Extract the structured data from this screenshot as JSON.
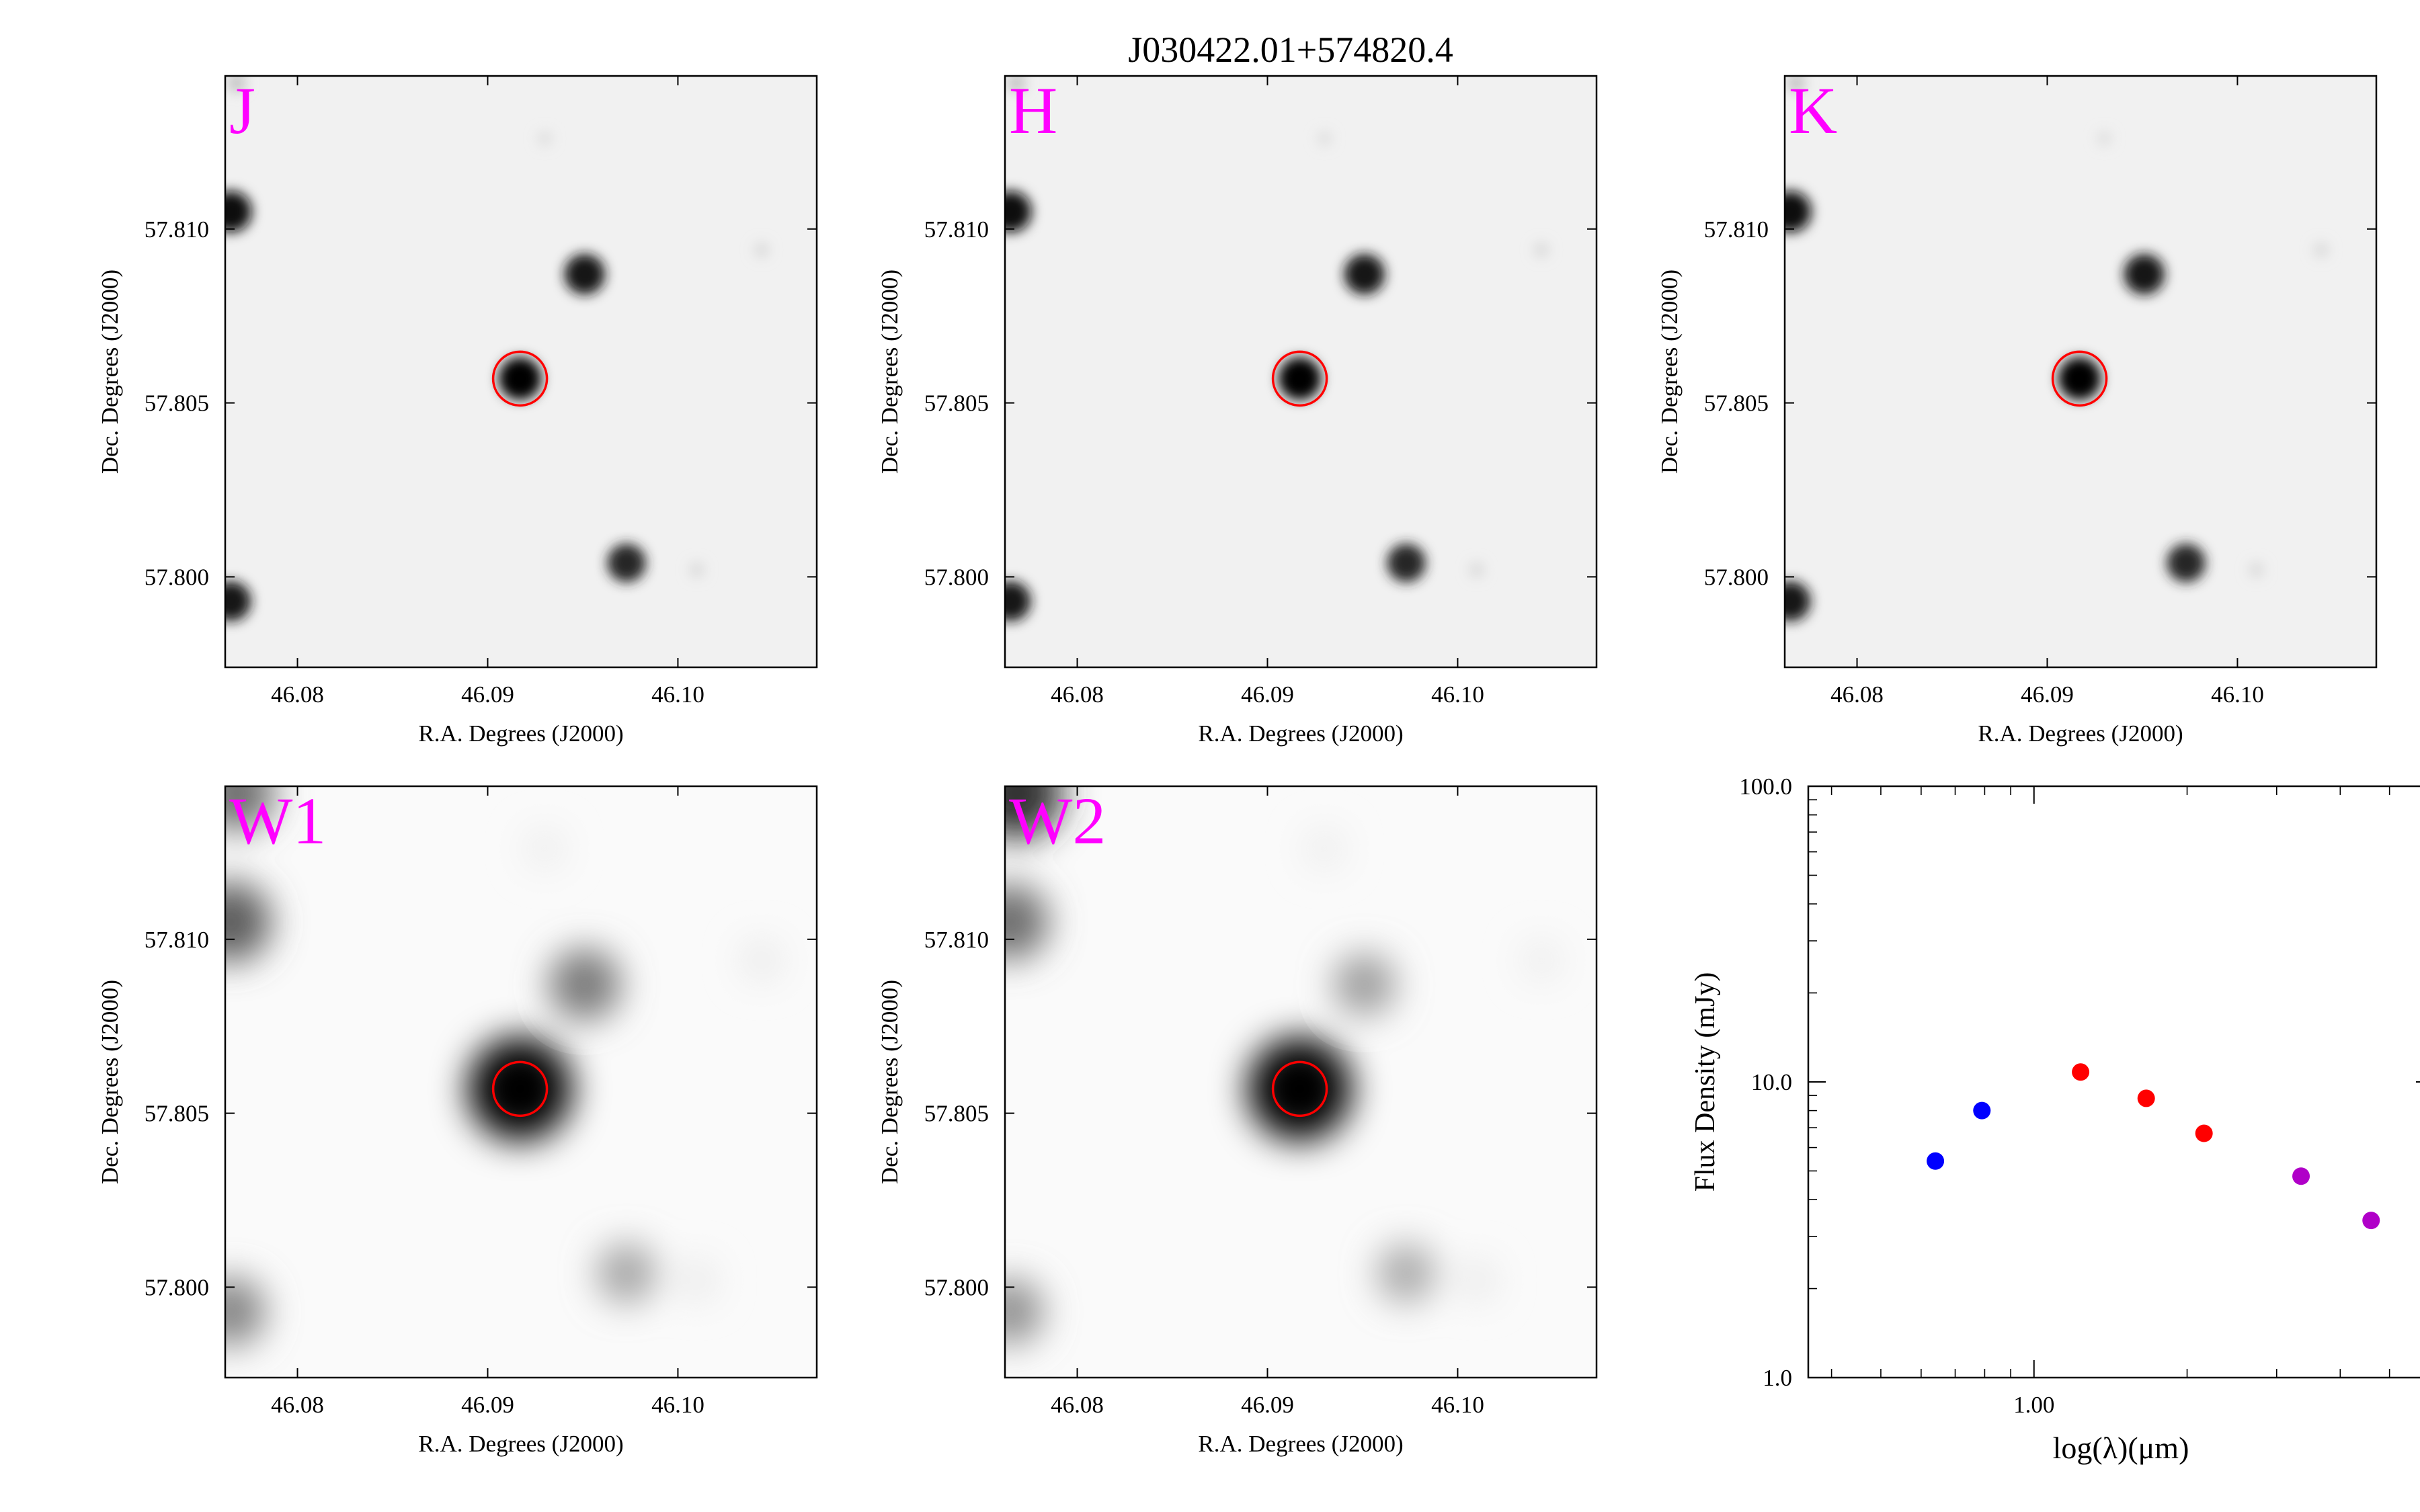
{
  "figure": {
    "title": "J030422.01+574820.4"
  },
  "colors": {
    "band_label": "#ff00ff",
    "target_circle": "#ff0000",
    "sed_2mass": "#ff0000",
    "sed_optical": "#0000ff",
    "sed_wise": "#b000c8"
  },
  "panels": [
    {
      "band": "J",
      "xlabel": "R.A. Degrees (J2000)",
      "ylabel": "Dec. Degrees (J2000)",
      "x_ticks": [
        "46.08",
        "46.09",
        "46.10"
      ],
      "y_ticks": [
        "57.810",
        "57.805",
        "57.800"
      ]
    },
    {
      "band": "H",
      "xlabel": "R.A. Degrees (J2000)",
      "ylabel": "Dec. Degrees (J2000)",
      "x_ticks": [
        "46.08",
        "46.09",
        "46.10"
      ],
      "y_ticks": [
        "57.810",
        "57.805",
        "57.800"
      ]
    },
    {
      "band": "K",
      "xlabel": "R.A. Degrees (J2000)",
      "ylabel": "Dec. Degrees (J2000)",
      "x_ticks": [
        "46.08",
        "46.09",
        "46.10"
      ],
      "y_ticks": [
        "57.810",
        "57.805",
        "57.800"
      ]
    },
    {
      "band": "W1",
      "xlabel": "R.A. Degrees (J2000)",
      "ylabel": "Dec. Degrees (J2000)",
      "x_ticks": [
        "46.08",
        "46.09",
        "46.10"
      ],
      "y_ticks": [
        "57.810",
        "57.805",
        "57.800"
      ]
    },
    {
      "band": "W2",
      "xlabel": "R.A. Degrees (J2000)",
      "ylabel": "Dec. Degrees (J2000)",
      "x_ticks": [
        "46.08",
        "46.09",
        "46.10"
      ],
      "y_ticks": [
        "57.810",
        "57.805",
        "57.800"
      ]
    }
  ],
  "chart_data": {
    "type": "scatter",
    "xlabel": "log(λ)(μm)",
    "ylabel": "Flux Density (mJy)",
    "x_scale": "log",
    "y_scale": "log",
    "xlim": [
      0.36,
      6.1
    ],
    "ylim": [
      1.0,
      100.0
    ],
    "x_tick_labels": [
      "1.00"
    ],
    "y_tick_labels": [
      "1.0",
      "10.0",
      "100.0"
    ],
    "grid": false,
    "legend": false,
    "series": [
      {
        "color": "#0000ff",
        "x": [
          0.64,
          0.79
        ],
        "y": [
          5.4,
          8.0
        ]
      },
      {
        "color": "#ff0000",
        "x": [
          1.235,
          1.662,
          2.159
        ],
        "y": [
          10.8,
          8.8,
          6.7
        ]
      },
      {
        "color": "#b000c8",
        "x": [
          3.35,
          4.6
        ],
        "y": [
          4.8,
          3.4
        ]
      }
    ]
  },
  "sky": {
    "ra_range": [
      46.0762,
      46.1073
    ],
    "dec_range": [
      57.7974,
      57.8144
    ],
    "target": {
      "ra": 46.0917,
      "dec": 57.8057
    },
    "sources": [
      {
        "ra": 46.0917,
        "dec": 57.8057,
        "nir": 1.0,
        "w1": 1.0,
        "w2": 1.0
      },
      {
        "ra": 46.0951,
        "dec": 57.8087,
        "nir": 0.92,
        "w1": 0.5,
        "w2": 0.35
      },
      {
        "ra": 46.0765,
        "dec": 57.8105,
        "nir": 0.95,
        "w1": 0.62,
        "w2": 0.55
      },
      {
        "ra": 46.0765,
        "dec": 57.7993,
        "nir": 0.9,
        "w1": 0.45,
        "w2": 0.4
      },
      {
        "ra": 46.0973,
        "dec": 57.8004,
        "nir": 0.85,
        "w1": 0.32,
        "w2": 0.3
      },
      {
        "ra": 46.0768,
        "dec": 57.8142,
        "nir": 0.2,
        "w1": 0.55,
        "w2": 0.8
      },
      {
        "ra": 46.1044,
        "dec": 57.8094,
        "nir": 0.1,
        "w1": 0.04,
        "w2": 0.03
      },
      {
        "ra": 46.093,
        "dec": 57.8126,
        "nir": 0.08,
        "w1": 0.03,
        "w2": 0.03
      },
      {
        "ra": 46.101,
        "dec": 57.8002,
        "nir": 0.1,
        "w1": 0.04,
        "w2": 0.04
      }
    ]
  }
}
